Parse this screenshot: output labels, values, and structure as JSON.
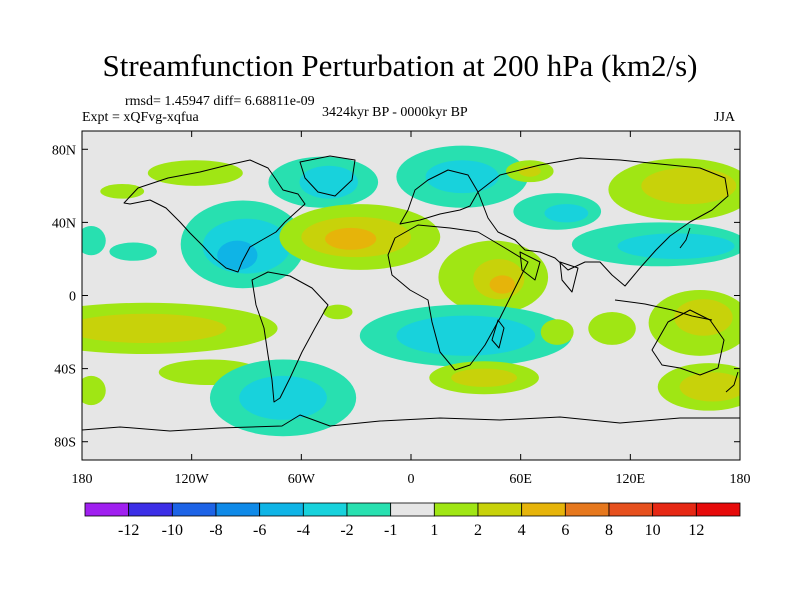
{
  "title": "Streamfunction Perturbation at 200 hPa (km2/s)",
  "stats_line": "rmsd= 1.45947 diff= 6.68811e-09",
  "experiment": "Expt = xQFvg-xqfua",
  "period": "3424kyr BP - 0000kyr BP",
  "season": "JJA",
  "map": {
    "projection": "cylindrical-equidistant",
    "lon_range": [
      -180,
      180
    ],
    "lat_range": [
      -90,
      90
    ],
    "lon_ticks": [
      {
        "value": -180,
        "label": "180"
      },
      {
        "value": -120,
        "label": "120W"
      },
      {
        "value": -60,
        "label": "60W"
      },
      {
        "value": 0,
        "label": "0"
      },
      {
        "value": 60,
        "label": "60E"
      },
      {
        "value": 120,
        "label": "120E"
      },
      {
        "value": 180,
        "label": "180"
      }
    ],
    "lat_ticks": [
      {
        "value": 80,
        "label": "80N"
      },
      {
        "value": 40,
        "label": "40N"
      },
      {
        "value": 0,
        "label": "0"
      },
      {
        "value": -40,
        "label": "40S"
      },
      {
        "value": -80,
        "label": "80S"
      }
    ],
    "neutral_color": "#e6e6e6",
    "anomalies": [
      {
        "lon": -158,
        "lat": 57,
        "rlon": 12,
        "rlat": 4,
        "level": 1
      },
      {
        "lon": -118,
        "lat": 67,
        "rlon": 26,
        "rlat": 7,
        "level": 1
      },
      {
        "lon": -48,
        "lat": 62,
        "rlon": 30,
        "rlat": 14,
        "level": -1
      },
      {
        "lon": -45,
        "lat": 62,
        "rlon": 16,
        "rlat": 9,
        "level": -2
      },
      {
        "lon": -92,
        "lat": 28,
        "rlon": 34,
        "rlat": 24,
        "level": -1
      },
      {
        "lon": -90,
        "lat": 27,
        "rlon": 24,
        "rlat": 15,
        "level": -2
      },
      {
        "lon": -95,
        "lat": 22,
        "rlon": 11,
        "rlat": 8,
        "level": -4
      },
      {
        "lon": -152,
        "lat": 24,
        "rlon": 13,
        "rlat": 5,
        "level": -1
      },
      {
        "lon": -175,
        "lat": 30,
        "rlon": 8,
        "rlat": 8,
        "level": -1
      },
      {
        "lon": -28,
        "lat": 32,
        "rlon": 44,
        "rlat": 18,
        "level": 1
      },
      {
        "lon": -30,
        "lat": 32,
        "rlon": 30,
        "rlat": 11,
        "level": 2
      },
      {
        "lon": -33,
        "lat": 31,
        "rlon": 14,
        "rlat": 6,
        "level": 4
      },
      {
        "lon": 28,
        "lat": 65,
        "rlon": 36,
        "rlat": 17,
        "level": -1
      },
      {
        "lon": 28,
        "lat": 65,
        "rlon": 20,
        "rlat": 9,
        "level": -2
      },
      {
        "lon": 65,
        "lat": 68,
        "rlon": 13,
        "rlat": 6,
        "level": 1
      },
      {
        "lon": 65,
        "lat": 68,
        "rlon": 6,
        "rlat": 3,
        "level": 2
      },
      {
        "lon": 80,
        "lat": 46,
        "rlon": 24,
        "rlat": 10,
        "level": -1
      },
      {
        "lon": 85,
        "lat": 45,
        "rlon": 12,
        "rlat": 5,
        "level": -2
      },
      {
        "lon": 148,
        "lat": 58,
        "rlon": 40,
        "rlat": 17,
        "level": 1
      },
      {
        "lon": 152,
        "lat": 60,
        "rlon": 26,
        "rlat": 10,
        "level": 2
      },
      {
        "lon": 136,
        "lat": 28,
        "rlon": 48,
        "rlat": 12,
        "level": -1
      },
      {
        "lon": 145,
        "lat": 27,
        "rlon": 32,
        "rlat": 7,
        "level": -2
      },
      {
        "lon": 45,
        "lat": 10,
        "rlon": 30,
        "rlat": 20,
        "level": 1
      },
      {
        "lon": 48,
        "lat": 9,
        "rlon": 14,
        "rlat": 11,
        "level": 2
      },
      {
        "lon": 50,
        "lat": 6,
        "rlon": 7,
        "rlat": 5,
        "level": 4
      },
      {
        "lon": -40,
        "lat": -9,
        "rlon": 8,
        "rlat": 4,
        "level": 1
      },
      {
        "lon": 30,
        "lat": -22,
        "rlon": 58,
        "rlat": 17,
        "level": -1
      },
      {
        "lon": 30,
        "lat": -22,
        "rlon": 38,
        "rlat": 11,
        "level": -2
      },
      {
        "lon": -145,
        "lat": -18,
        "rlon": 72,
        "rlat": 14,
        "level": 1
      },
      {
        "lon": -145,
        "lat": -18,
        "rlon": 44,
        "rlat": 8,
        "level": 2
      },
      {
        "lon": 80,
        "lat": -20,
        "rlon": 9,
        "rlat": 7,
        "level": 1
      },
      {
        "lon": 110,
        "lat": -18,
        "rlon": 13,
        "rlat": 9,
        "level": 1
      },
      {
        "lon": 158,
        "lat": -15,
        "rlon": 28,
        "rlat": 18,
        "level": 1
      },
      {
        "lon": 160,
        "lat": -12,
        "rlon": 16,
        "rlat": 10,
        "level": 2
      },
      {
        "lon": -110,
        "lat": -42,
        "rlon": 28,
        "rlat": 7,
        "level": 1
      },
      {
        "lon": -70,
        "lat": -56,
        "rlon": 40,
        "rlat": 21,
        "level": -1
      },
      {
        "lon": -70,
        "lat": -56,
        "rlon": 24,
        "rlat": 12,
        "level": -2
      },
      {
        "lon": 40,
        "lat": -45,
        "rlon": 30,
        "rlat": 9,
        "level": 1
      },
      {
        "lon": 40,
        "lat": -45,
        "rlon": 18,
        "rlat": 5,
        "level": 2
      },
      {
        "lon": 163,
        "lat": -50,
        "rlon": 28,
        "rlat": 13,
        "level": 1
      },
      {
        "lon": 165,
        "lat": -50,
        "rlon": 18,
        "rlat": 8,
        "level": 2
      },
      {
        "lon": -175,
        "lat": -52,
        "rlon": 8,
        "rlat": 8,
        "level": 1
      }
    ]
  },
  "colorbar": {
    "labels": [
      "-12",
      "-10",
      "-8",
      "-6",
      "-4",
      "-2",
      "-1",
      "1",
      "2",
      "4",
      "6",
      "8",
      "10",
      "12"
    ],
    "colors": [
      "#a020f0",
      "#3c2ee6",
      "#1d63e6",
      "#0f8ae8",
      "#0fb4e6",
      "#18d2dc",
      "#28e0b0",
      "#e6e6e6",
      "#a0e614",
      "#c8d20a",
      "#e6b40a",
      "#e6781e",
      "#e6501e",
      "#e62814",
      "#e60a0a"
    ]
  }
}
